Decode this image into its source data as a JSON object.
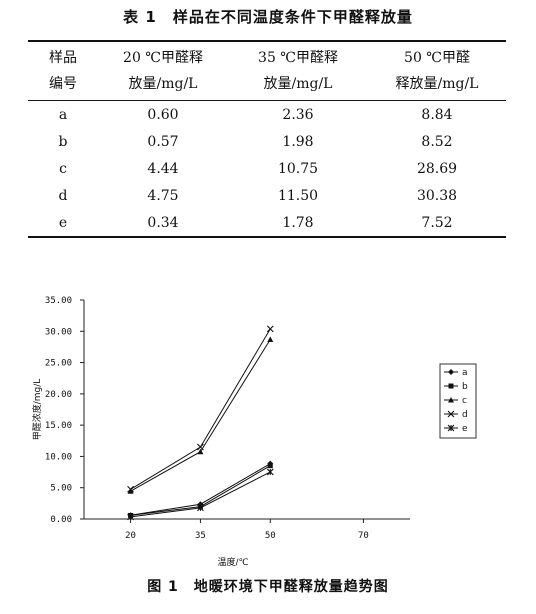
{
  "table": {
    "caption": "表 1　样品在不同温度条件下甲醛释放量",
    "headers": [
      [
        "样品",
        "编号"
      ],
      [
        "20 ℃甲醛释",
        "放量/mg/L"
      ],
      [
        "35 ℃甲醛释",
        "放量/mg/L"
      ],
      [
        "50 ℃甲醛",
        "释放量/mg/L"
      ]
    ],
    "rows": [
      [
        "a",
        "0.60",
        "2.36",
        "8.84"
      ],
      [
        "b",
        "0.57",
        "1.98",
        "8.52"
      ],
      [
        "c",
        "4.44",
        "10.75",
        "28.69"
      ],
      [
        "d",
        "4.75",
        "11.50",
        "30.38"
      ],
      [
        "e",
        "0.34",
        "1.78",
        "7.52"
      ]
    ]
  },
  "figure": {
    "caption": "图 1　地暖环境下甲醛释放量趋势图"
  },
  "chart_data": {
    "type": "line",
    "x": [
      20,
      35,
      50
    ],
    "x_ticks": [
      "20",
      "35",
      "50",
      "70"
    ],
    "y_ticks": [
      "0.00",
      "5.00",
      "10.00",
      "15.00",
      "20.00",
      "25.00",
      "30.00",
      "35.00"
    ],
    "xlabel": "温度/℃",
    "ylabel": "甲醛浓度/mg/L",
    "ylim": [
      0,
      35
    ],
    "legend_position": "right",
    "grid": false,
    "series": [
      {
        "name": "a",
        "values": [
          0.6,
          2.36,
          8.84
        ],
        "marker": "diamond"
      },
      {
        "name": "b",
        "values": [
          0.57,
          1.98,
          8.52
        ],
        "marker": "square"
      },
      {
        "name": "c",
        "values": [
          4.44,
          10.75,
          28.69
        ],
        "marker": "triangle"
      },
      {
        "name": "d",
        "values": [
          4.75,
          11.5,
          30.38
        ],
        "marker": "x"
      },
      {
        "name": "e",
        "values": [
          0.34,
          1.78,
          7.52
        ],
        "marker": "star"
      }
    ]
  }
}
